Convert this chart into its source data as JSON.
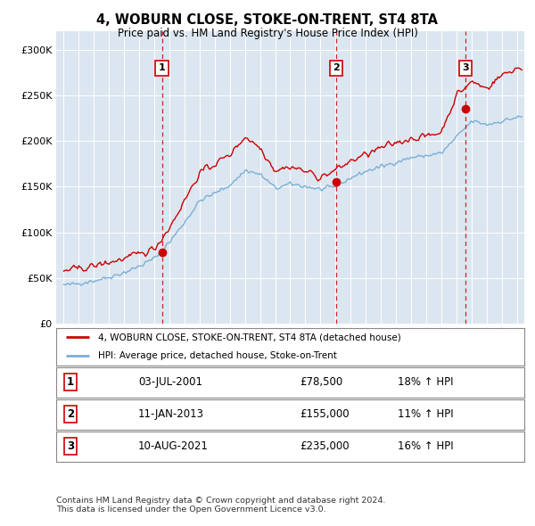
{
  "title": "4, WOBURN CLOSE, STOKE-ON-TRENT, ST4 8TA",
  "subtitle": "Price paid vs. HM Land Registry's House Price Index (HPI)",
  "background_color": "#dce6f1",
  "legend_line1": "4, WOBURN CLOSE, STOKE-ON-TRENT, ST4 8TA (detached house)",
  "legend_line2": "HPI: Average price, detached house, Stoke-on-Trent",
  "footer": "Contains HM Land Registry data © Crown copyright and database right 2024.\nThis data is licensed under the Open Government Licence v3.0.",
  "sales": [
    {
      "num": 1,
      "date": "03-JUL-2001",
      "price": "£78,500",
      "year": 2001.5,
      "val": 78500,
      "pct": "18% ↑ HPI"
    },
    {
      "num": 2,
      "date": "11-JAN-2013",
      "price": "£155,000",
      "year": 2013.04,
      "val": 155000,
      "pct": "11% ↑ HPI"
    },
    {
      "num": 3,
      "date": "10-AUG-2021",
      "price": "£235,000",
      "year": 2021.6,
      "val": 235000,
      "pct": "16% ↑ HPI"
    }
  ],
  "red_color": "#cc0000",
  "blue_color": "#7bafd4",
  "ylim": [
    0,
    320000
  ],
  "yticks": [
    0,
    50000,
    100000,
    150000,
    200000,
    250000,
    300000
  ],
  "xlim_start": 1994.5,
  "xlim_end": 2025.5,
  "hpi_year_vals": {
    "1995": 42000,
    "1996": 44000,
    "1997": 47000,
    "1998": 51000,
    "1999": 56000,
    "2000": 63000,
    "2001": 72000,
    "2002": 90000,
    "2003": 112000,
    "2004": 135000,
    "2005": 143000,
    "2006": 152000,
    "2007": 168000,
    "2008": 163000,
    "2009": 148000,
    "2010": 153000,
    "2011": 150000,
    "2012": 147000,
    "2013": 150000,
    "2014": 160000,
    "2015": 167000,
    "2016": 172000,
    "2017": 177000,
    "2018": 182000,
    "2019": 184000,
    "2020": 187000,
    "2021": 205000,
    "2022": 222000,
    "2023": 218000,
    "2024": 222000,
    "2025": 226000
  },
  "prop_year_vals": {
    "1995": 58000,
    "1996": 60000,
    "1997": 63000,
    "1998": 67000,
    "1999": 71000,
    "2000": 76000,
    "2001": 82000,
    "2002": 105000,
    "2003": 135000,
    "2004": 165000,
    "2005": 175000,
    "2006": 185000,
    "2007": 205000,
    "2008": 193000,
    "2009": 168000,
    "2010": 172000,
    "2011": 167000,
    "2012": 160000,
    "2013": 168000,
    "2014": 178000,
    "2015": 185000,
    "2016": 192000,
    "2017": 198000,
    "2018": 203000,
    "2019": 205000,
    "2020": 210000,
    "2021": 250000,
    "2022": 265000,
    "2023": 258000,
    "2024": 272000,
    "2025": 280000
  }
}
